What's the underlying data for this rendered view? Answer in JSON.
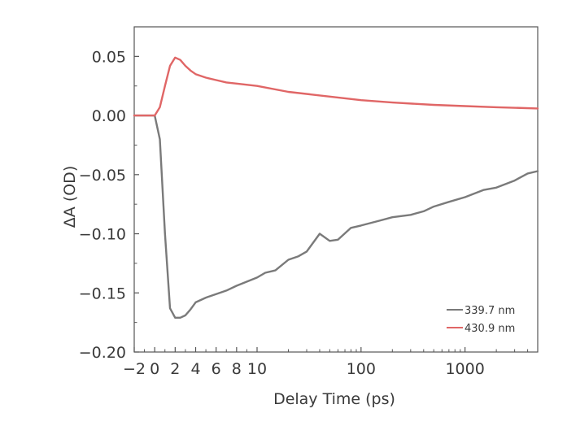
{
  "chart_data": {
    "type": "line",
    "title": "",
    "xlabel": "Delay Time (ps)",
    "ylabel": "ΔA (OD)",
    "x_scale": "linear below 10 ps, logarithmic above 10 ps",
    "xlim": [
      -2,
      5000
    ],
    "ylim": [
      -0.2,
      0.075
    ],
    "x_tick_labels": [
      "-2",
      "0",
      "2",
      "4",
      "6",
      "8",
      "10",
      "100",
      "1000"
    ],
    "x_tick_values": [
      -2,
      0,
      2,
      4,
      6,
      8,
      10,
      100,
      1000
    ],
    "y_tick_labels": [
      "0.05",
      "0.00",
      "-0.05",
      "-0.10",
      "-0.15",
      "-0.20"
    ],
    "y_tick_values": [
      0.05,
      0.0,
      -0.05,
      -0.1,
      -0.15,
      -0.2
    ],
    "grid": false,
    "legend_position": "bottom-right",
    "series": [
      {
        "name": "339.7 nm",
        "color": "#7a7a7a",
        "x": [
          -2,
          0,
          0.5,
          1.0,
          1.5,
          2.0,
          2.5,
          3.0,
          3.5,
          4.0,
          5.0,
          6.0,
          7.0,
          8.0,
          10,
          12,
          15,
          20,
          25,
          30,
          40,
          50,
          60,
          80,
          100,
          150,
          200,
          300,
          400,
          500,
          700,
          1000,
          1500,
          2000,
          3000,
          4000,
          5000
        ],
        "y": [
          0.0,
          0.0,
          -0.02,
          -0.1,
          -0.163,
          -0.171,
          -0.171,
          -0.169,
          -0.164,
          -0.158,
          -0.154,
          -0.151,
          -0.148,
          -0.144,
          -0.137,
          -0.133,
          -0.131,
          -0.122,
          -0.119,
          -0.115,
          -0.1,
          -0.106,
          -0.105,
          -0.095,
          -0.093,
          -0.089,
          -0.086,
          -0.084,
          -0.081,
          -0.077,
          -0.073,
          -0.069,
          -0.063,
          -0.061,
          -0.055,
          -0.049,
          -0.047
        ]
      },
      {
        "name": "430.9 nm",
        "color": "#e06666",
        "x": [
          -2,
          0,
          0.5,
          1.0,
          1.5,
          2.0,
          2.5,
          3.0,
          3.5,
          4.0,
          5.0,
          6.0,
          7.0,
          8.0,
          10,
          20,
          50,
          100,
          200,
          500,
          1000,
          2000,
          5000
        ],
        "y": [
          0.0,
          0.0,
          0.007,
          0.025,
          0.042,
          0.049,
          0.047,
          0.042,
          0.038,
          0.035,
          0.032,
          0.03,
          0.028,
          0.027,
          0.025,
          0.02,
          0.016,
          0.013,
          0.011,
          0.009,
          0.008,
          0.007,
          0.006
        ]
      }
    ]
  }
}
